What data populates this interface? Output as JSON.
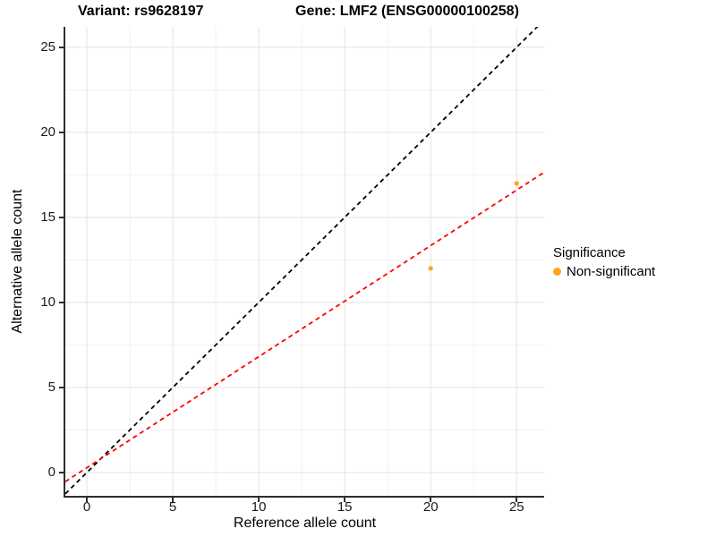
{
  "chart_data": {
    "type": "scatter",
    "title_left": "Variant: rs9628197",
    "title_right": "Gene: LMF2 (ENSG00000100258)",
    "xlabel": "Reference allele count",
    "ylabel": "Alternative allele count",
    "x_ticks": [
      0,
      5,
      10,
      15,
      20,
      25
    ],
    "y_ticks": [
      0,
      5,
      10,
      15,
      20,
      25
    ],
    "xlim": [
      -1.25,
      26.6
    ],
    "ylim": [
      -1.37,
      26.2
    ],
    "grid": {
      "major": true,
      "minor": true,
      "major_color": "#E3E3E3",
      "minor_color": "#F1F1F1"
    },
    "points": [
      {
        "x": 20,
        "y": 12,
        "series": "Non-significant"
      },
      {
        "x": 25,
        "y": 17,
        "series": "Non-significant"
      }
    ],
    "point_color": "#FFA41B",
    "point_radius": 2.6,
    "lines": [
      {
        "name": "identity-line",
        "slope": 1,
        "intercept": 0,
        "color": "#000000",
        "style": "dashed"
      },
      {
        "name": "fit-line",
        "slope": 0.653,
        "intercept": 0.28,
        "color": "#FF0000",
        "style": "dashed"
      }
    ],
    "legend": {
      "title": "Significance",
      "position": "right",
      "items": [
        {
          "label": "Non-significant",
          "color": "#FFA41B"
        }
      ]
    },
    "axis_color": "#2e2e2e"
  }
}
